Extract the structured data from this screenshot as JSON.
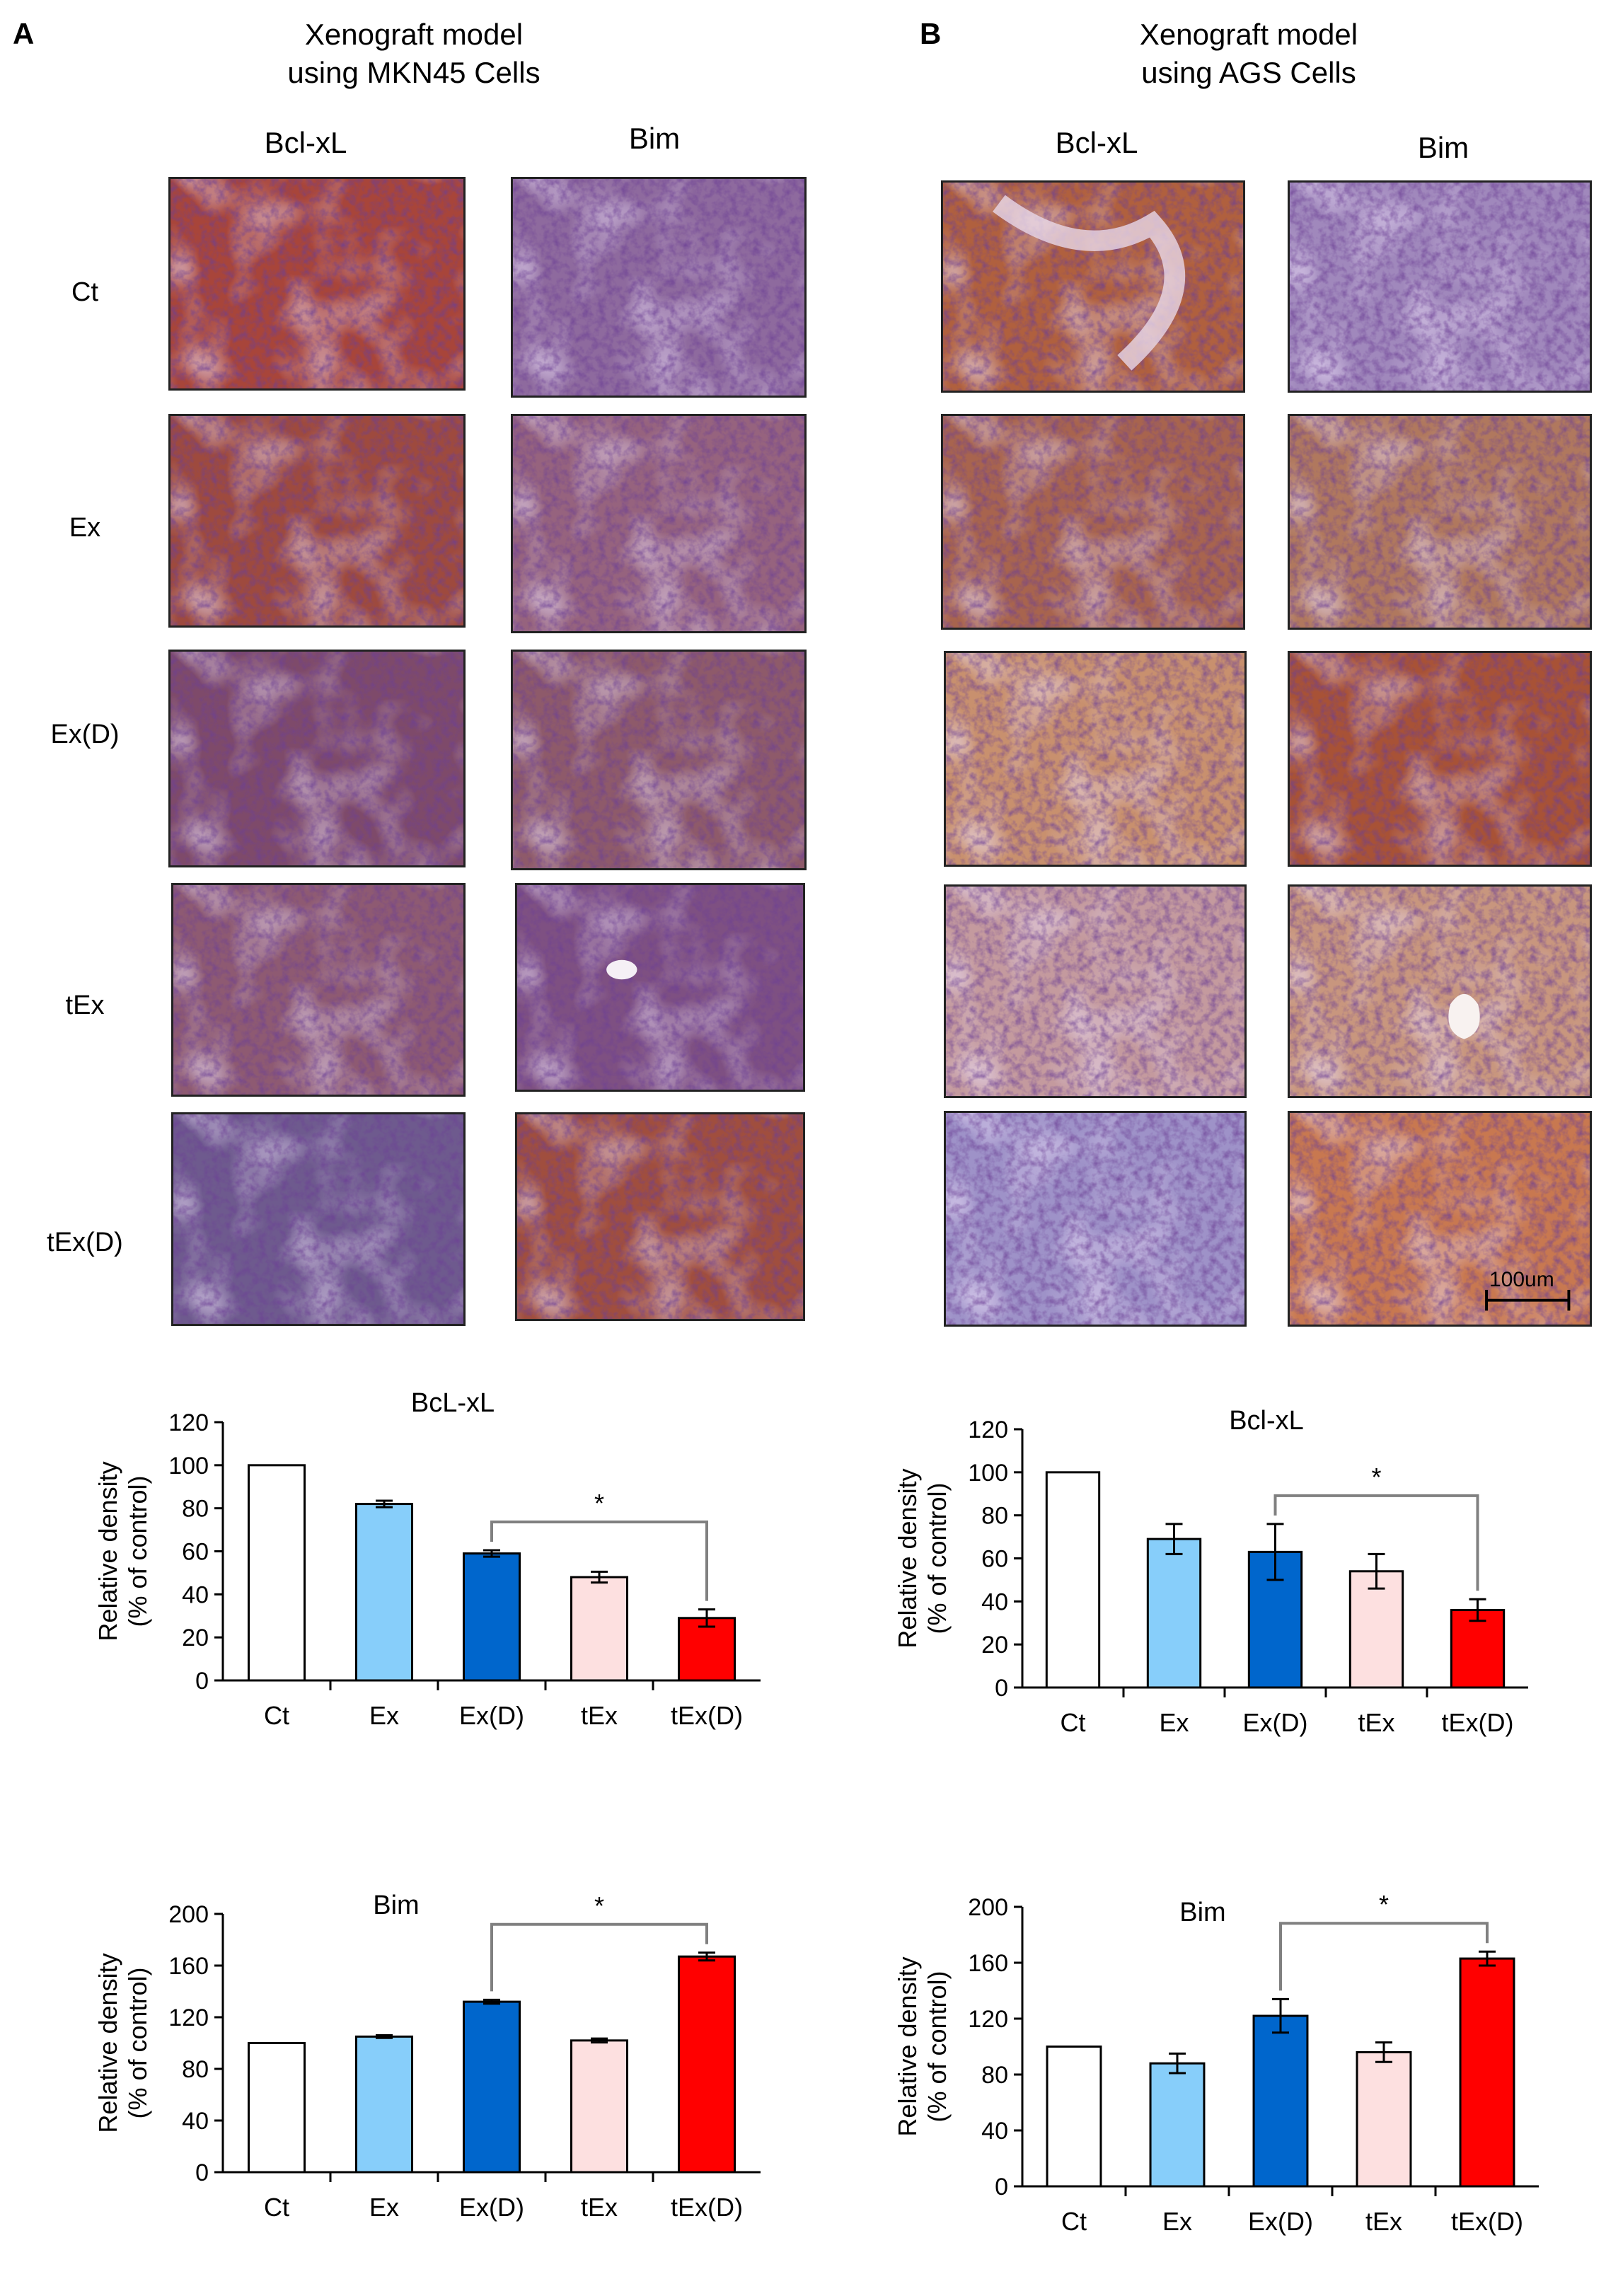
{
  "figure": {
    "panels": [
      {
        "letter": "A",
        "title_line1": "Xenograft model",
        "title_line2": "using MKN45 Cells",
        "columns": [
          "Bcl-xL",
          "Bim"
        ],
        "rows": [
          "Ct",
          "Ex",
          "Ex(D)",
          "tEx",
          "tEx(D)"
        ]
      },
      {
        "letter": "B",
        "title_line1": "Xenograft model",
        "title_line2": "using AGS Cells",
        "columns": [
          "Bcl-xL",
          "Bim"
        ]
      }
    ],
    "scale_bar": "100um"
  },
  "colors": {
    "Ct": "#ffffff",
    "Ex": "#87cefa",
    "Ex(D)": "#0066cc",
    "tEx": "#fde0e0",
    "tEx(D)": "#ff0000"
  },
  "chart_data": [
    {
      "type": "bar",
      "title": "BcL-xL",
      "ylabel_line1": "Relative density",
      "ylabel_line2": "(% of control)",
      "categories": [
        "Ct",
        "Ex",
        "Ex(D)",
        "tEx",
        "tEx(D)"
      ],
      "values": [
        100,
        82,
        59,
        48,
        29
      ],
      "errors": [
        0,
        1.5,
        1.5,
        2.5,
        4
      ],
      "ylim": [
        0,
        120
      ],
      "yticks": [
        0,
        20,
        40,
        60,
        80,
        100,
        120
      ],
      "significance": {
        "from": "Ex(D)",
        "to": "tEx(D)",
        "label": "*"
      }
    },
    {
      "type": "bar",
      "title": "Bcl-xL",
      "ylabel_line1": "Relative density",
      "ylabel_line2": "(% of control)",
      "categories": [
        "Ct",
        "Ex",
        "Ex(D)",
        "tEx",
        "tEx(D)"
      ],
      "values": [
        100,
        69,
        63,
        54,
        36
      ],
      "errors": [
        0,
        7,
        13,
        8,
        5
      ],
      "ylim": [
        0,
        120
      ],
      "yticks": [
        0,
        20,
        40,
        60,
        80,
        100,
        120
      ],
      "significance": {
        "from": "Ex(D)",
        "to": "tEx(D)",
        "label": "*"
      }
    },
    {
      "type": "bar",
      "title": "Bim",
      "ylabel_line1": "Relative density",
      "ylabel_line2": "(% of control)",
      "categories": [
        "Ct",
        "Ex",
        "Ex(D)",
        "tEx",
        "tEx(D)"
      ],
      "values": [
        100,
        105,
        132,
        102,
        167
      ],
      "errors": [
        0,
        1,
        1.5,
        1.5,
        3
      ],
      "ylim": [
        0,
        200
      ],
      "yticks": [
        0,
        40,
        80,
        120,
        160,
        200
      ],
      "significance": {
        "from": "Ex(D)",
        "to": "tEx(D)",
        "label": "*"
      }
    },
    {
      "type": "bar",
      "title": "Bim",
      "ylabel_line1": "Relative density",
      "ylabel_line2": "(% of control)",
      "categories": [
        "Ct",
        "Ex",
        "Ex(D)",
        "tEx",
        "tEx(D)"
      ],
      "values": [
        100,
        88,
        122,
        96,
        163
      ],
      "errors": [
        0,
        7,
        12,
        7,
        5
      ],
      "ylim": [
        0,
        200
      ],
      "yticks": [
        0,
        40,
        80,
        120,
        160,
        200
      ],
      "significance": {
        "from": "Ex(D)",
        "to": "tEx(D)",
        "label": "*"
      }
    }
  ]
}
